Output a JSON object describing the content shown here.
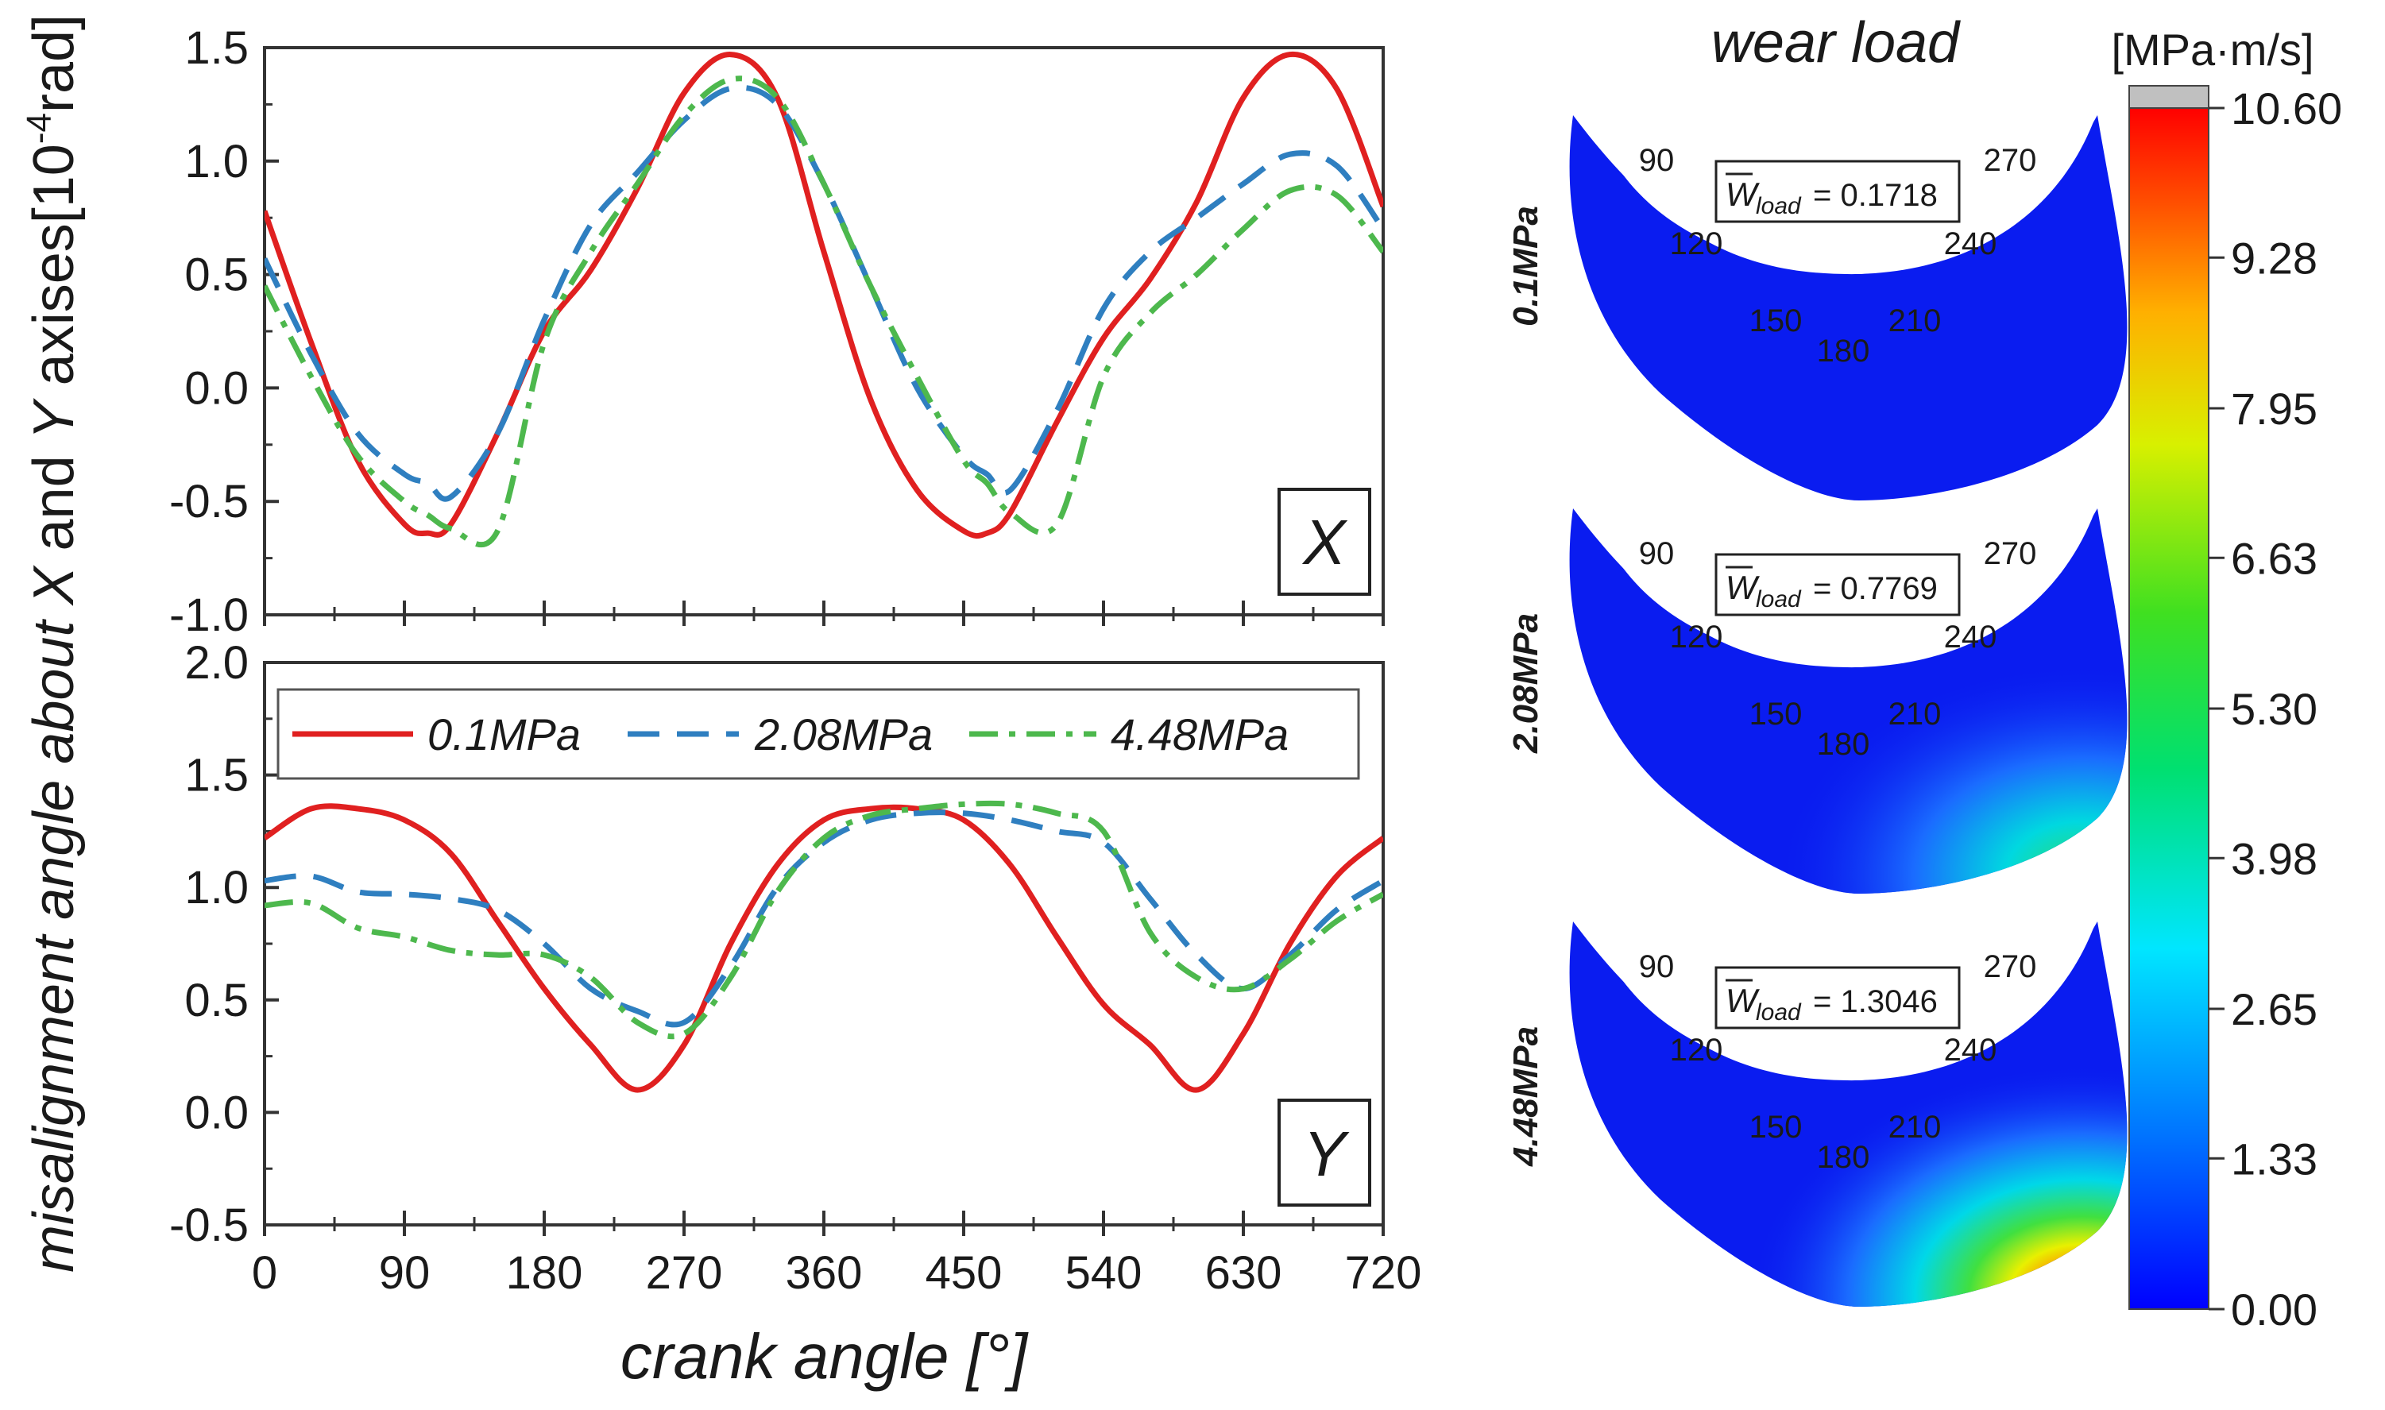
{
  "chart_data": [
    {
      "type": "line",
      "panel": "X",
      "panel_label": "X",
      "ylim": [
        -1.0,
        1.5
      ],
      "yticks": [
        "1.5",
        "1.0",
        "0.5",
        "0.0",
        "-0.5",
        "-1.0"
      ],
      "xlim": [
        0,
        720
      ],
      "x": [
        0,
        30,
        60,
        90,
        105,
        120,
        150,
        180,
        210,
        240,
        270,
        300,
        330,
        360,
        390,
        420,
        450,
        465,
        480,
        510,
        540,
        570,
        600,
        630,
        660,
        690,
        720
      ],
      "series": [
        {
          "name": "0.1MPa",
          "color": "#e02020",
          "dash": "solid",
          "values": [
            0.78,
            0.2,
            -0.32,
            -0.6,
            -0.64,
            -0.6,
            -0.2,
            0.25,
            0.52,
            0.88,
            1.3,
            1.47,
            1.28,
            0.6,
            -0.05,
            -0.45,
            -0.63,
            -0.64,
            -0.55,
            -0.15,
            0.22,
            0.48,
            0.82,
            1.28,
            1.47,
            1.32,
            0.8
          ]
        },
        {
          "name": "2.08MPa",
          "color": "#2f7fc0",
          "dash": "dash",
          "values": [
            0.57,
            0.15,
            -0.2,
            -0.38,
            -0.42,
            -0.48,
            -0.2,
            0.3,
            0.72,
            0.95,
            1.18,
            1.32,
            1.25,
            0.9,
            0.45,
            0.0,
            -0.3,
            -0.38,
            -0.45,
            -0.1,
            0.35,
            0.6,
            0.75,
            0.9,
            1.03,
            0.98,
            0.7
          ]
        },
        {
          "name": "4.48MPa",
          "color": "#4db84d",
          "dash": "dashdot",
          "values": [
            0.45,
            0.05,
            -0.3,
            -0.5,
            -0.56,
            -0.62,
            -0.63,
            0.2,
            0.6,
            0.9,
            1.2,
            1.36,
            1.28,
            0.9,
            0.45,
            0.05,
            -0.32,
            -0.42,
            -0.55,
            -0.6,
            0.05,
            0.33,
            0.5,
            0.7,
            0.87,
            0.85,
            0.6
          ]
        }
      ]
    },
    {
      "type": "line",
      "panel": "Y",
      "panel_label": "Y",
      "ylim": [
        -0.5,
        2.0
      ],
      "yticks": [
        "2.0",
        "1.5",
        "1.0",
        "0.5",
        "0.0",
        "-0.5"
      ],
      "xlim": [
        0,
        720
      ],
      "xticks": [
        "0",
        "90",
        "180",
        "270",
        "360",
        "450",
        "540",
        "630",
        "720"
      ],
      "x": [
        0,
        30,
        60,
        90,
        120,
        150,
        180,
        210,
        240,
        270,
        300,
        330,
        360,
        390,
        420,
        450,
        480,
        510,
        540,
        570,
        600,
        630,
        660,
        690,
        720
      ],
      "series": [
        {
          "name": "0.1MPa",
          "color": "#e02020",
          "dash": "solid",
          "values": [
            1.22,
            1.35,
            1.35,
            1.3,
            1.15,
            0.85,
            0.55,
            0.3,
            0.1,
            0.3,
            0.75,
            1.1,
            1.3,
            1.35,
            1.35,
            1.3,
            1.1,
            0.78,
            0.48,
            0.3,
            0.1,
            0.35,
            0.75,
            1.05,
            1.22
          ]
        },
        {
          "name": "2.08MPa",
          "color": "#2f7fc0",
          "dash": "dash",
          "values": [
            1.03,
            1.05,
            0.98,
            0.97,
            0.95,
            0.9,
            0.75,
            0.55,
            0.45,
            0.4,
            0.65,
            1.0,
            1.2,
            1.3,
            1.33,
            1.33,
            1.3,
            1.25,
            1.2,
            0.95,
            0.7,
            0.55,
            0.7,
            0.9,
            1.03
          ]
        },
        {
          "name": "4.48MPa",
          "color": "#4db84d",
          "dash": "dashdot",
          "values": [
            0.92,
            0.93,
            0.82,
            0.78,
            0.72,
            0.7,
            0.7,
            0.6,
            0.4,
            0.35,
            0.6,
            0.98,
            1.22,
            1.32,
            1.35,
            1.37,
            1.37,
            1.33,
            1.25,
            0.8,
            0.6,
            0.55,
            0.68,
            0.85,
            0.97
          ]
        }
      ]
    }
  ],
  "axes": {
    "ylabel_main": "misalignment angle about ",
    "ylabel_x": "X",
    "ylabel_and": " and ",
    "ylabel_y": "Y",
    "ylabel_axises": " axises[10",
    "ylabel_exp": "-4",
    "ylabel_unit": "rad]",
    "xlabel": "crank angle [°]"
  },
  "legend": [
    "0.1MPa",
    "2.08MPa",
    "4.48MPa"
  ],
  "wear": {
    "title": "wear load",
    "angle_labels": [
      "90",
      "120",
      "150",
      "180",
      "210",
      "240",
      "270"
    ],
    "panels": [
      {
        "label": "0.1MPa",
        "w_text": "= 0.1718",
        "intensity": 0.0
      },
      {
        "label": "2.08MPa",
        "w_text": "= 0.7769",
        "intensity": 0.5
      },
      {
        "label": "4.48MPa",
        "w_text": "= 1.3046",
        "intensity": 1.0
      }
    ],
    "w_symbol": "W",
    "w_sub": "load"
  },
  "colorbar": {
    "unit": "[MPa·m/s]",
    "ticks": [
      "10.60",
      "9.28",
      "7.95",
      "6.63",
      "5.30",
      "3.98",
      "2.65",
      "1.33",
      "0.00"
    ],
    "min": 0.0,
    "max": 10.6
  },
  "colors": {
    "low": "#0a1cf0",
    "high": "#ff1010",
    "cap": "#c0c0c0"
  }
}
